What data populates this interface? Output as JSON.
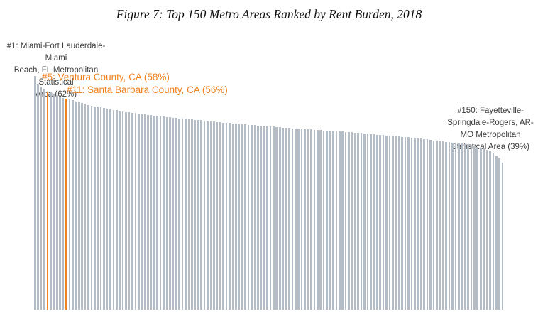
{
  "figure": {
    "title": "Figure 7: Top 150 Metro Areas Ranked by Rent Burden, 2018"
  },
  "chart_data": {
    "type": "bar",
    "title": "Figure 7: Top 150 Metro Areas Ranked by Rent Burden, 2018",
    "xlabel": "",
    "ylabel": "",
    "x_description": "Metro area rank, 1 through 150 (no axis labels or gridlines shown)",
    "unit": "% rent burden",
    "ylim": [
      0,
      65
    ],
    "grid": false,
    "axes_visible": false,
    "bar_color": "#b4bdc5",
    "highlight_color": "#f0821f",
    "label_color": "#3d3d3d",
    "highlighted_ranks": [
      5,
      11
    ],
    "values": [
      62,
      60,
      59.3,
      58.7,
      58,
      57.7,
      57.3,
      57,
      56.7,
      56.3,
      56,
      55.8,
      55.6,
      55.3,
      55.1,
      54.9,
      54.7,
      54.4,
      54.2,
      54,
      53.9,
      53.7,
      53.6,
      53.4,
      53.3,
      53.1,
      53,
      52.8,
      52.7,
      52.5,
      52.4,
      52.3,
      52.2,
      52.1,
      52,
      51.9,
      51.8,
      51.7,
      51.6,
      51.5,
      51.4,
      51.3,
      51.2,
      51.1,
      51,
      50.9,
      50.8,
      50.8,
      50.7,
      50.6,
      50.5,
      50.4,
      50.4,
      50.3,
      50.2,
      50.1,
      50,
      50,
      49.9,
      49.8,
      49.7,
      49.7,
      49.6,
      49.5,
      49.4,
      49.4,
      49.3,
      49.2,
      49.1,
      49.1,
      49,
      48.9,
      48.8,
      48.8,
      48.7,
      48.6,
      48.6,
      48.5,
      48.5,
      48.4,
      48.3,
      48.3,
      48.2,
      48.2,
      48.1,
      48,
      48,
      47.9,
      47.9,
      47.8,
      47.7,
      47.7,
      47.6,
      47.6,
      47.5,
      47.4,
      47.4,
      47.3,
      47.3,
      47.2,
      47.1,
      47.1,
      47,
      47,
      46.9,
      46.8,
      46.8,
      46.7,
      46.6,
      46.5,
      46.5,
      46.4,
      46.3,
      46.2,
      46.2,
      46.1,
      46,
      45.9,
      45.9,
      45.8,
      45.7,
      45.6,
      45.5,
      45.4,
      45.3,
      45.2,
      45.1,
      45,
      44.9,
      44.8,
      44.7,
      44.6,
      44.5,
      44.4,
      44.3,
      44.2,
      44.1,
      44,
      43.9,
      43.8,
      43.5,
      43.3,
      43,
      42.8,
      42.5,
      42,
      41.5,
      40.9,
      40.3,
      39
    ],
    "annotations": [
      {
        "rank": 1,
        "value_pct": 62,
        "color": "#3d3d3d",
        "lines": [
          "#1: Miami-Fort Lauderdale-Miami",
          "Beach, FL Metropolitan Statistical",
          "Area (62%)"
        ]
      },
      {
        "rank": 5,
        "value_pct": 58,
        "color": "#f0821f",
        "lines": [
          "#5: Ventura County, CA (58%)"
        ]
      },
      {
        "rank": 11,
        "value_pct": 56,
        "color": "#f0821f",
        "lines": [
          "#11: Santa Barbara County, CA (56%)"
        ]
      },
      {
        "rank": 150,
        "value_pct": 39,
        "color": "#3d3d3d",
        "lines": [
          "#150: Fayetteville-",
          "Springdale-Rogers, AR-",
          "MO Metropolitan",
          "Statistical Area (39%)"
        ]
      }
    ]
  }
}
